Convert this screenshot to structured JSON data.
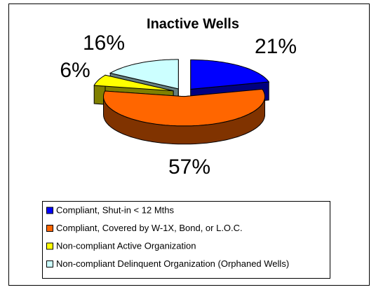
{
  "chart_data": {
    "type": "pie",
    "title": "Inactive Wells",
    "categories": [
      "Compliant, Shut-in < 12 Mths",
      "Compliant,  Covered by W-1X, Bond, or L.O.C.",
      "Non-compliant Active Organization",
      "Non-compliant Delinquent Organization (Orphaned Wells)"
    ],
    "values": [
      21,
      57,
      6,
      16
    ],
    "value_labels": [
      "21%",
      "57%",
      "6%",
      "16%"
    ],
    "colors": [
      "#0000ff",
      "#ff6600",
      "#ffff00",
      "#ccffff"
    ],
    "legend": "bottom"
  }
}
